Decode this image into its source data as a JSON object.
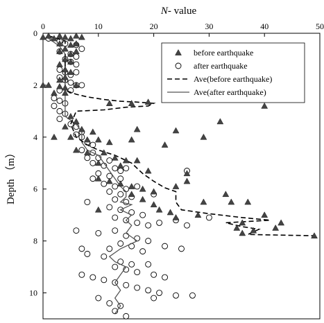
{
  "chart_data": {
    "type": "scatter",
    "title": "",
    "x_axis": {
      "label_italic": "N",
      "label_rest": "- value",
      "position": "top",
      "range": [
        0,
        50
      ],
      "ticks": [
        0,
        10,
        20,
        30,
        40,
        50
      ]
    },
    "y_axis": {
      "label": "Depth （m）",
      "inverted": true,
      "range": [
        0,
        11
      ],
      "ticks": [
        0,
        2,
        4,
        6,
        8,
        10
      ]
    },
    "grid": false,
    "legend": {
      "placement": "top-right",
      "entries": [
        {
          "key": "before_pts",
          "label": "before earthquake",
          "symbol": "triangle"
        },
        {
          "key": "after_pts",
          "label": "after earthquake",
          "symbol": "circle"
        },
        {
          "key": "before_ave",
          "label": "Ave(before earthquake)",
          "symbol": "dashed-line"
        },
        {
          "key": "after_ave",
          "label": "Ave(after earthquake)",
          "symbol": "solid-line"
        }
      ]
    },
    "series": {
      "before_pts": [
        [
          0,
          0.15
        ],
        [
          1,
          0.1
        ],
        [
          2,
          0.2
        ],
        [
          3,
          0.1
        ],
        [
          4,
          0.15
        ],
        [
          5,
          0.2
        ],
        [
          6,
          0.1
        ],
        [
          7,
          0.15
        ],
        [
          3,
          0.4
        ],
        [
          5,
          0.45
        ],
        [
          6,
          0.4
        ],
        [
          4,
          0.6
        ],
        [
          3,
          0.7
        ],
        [
          5,
          0.8
        ],
        [
          6,
          0.7
        ],
        [
          4,
          1.0
        ],
        [
          5,
          1.1
        ],
        [
          3,
          1.2
        ],
        [
          4,
          1.4
        ],
        [
          5,
          1.5
        ],
        [
          4,
          1.7
        ],
        [
          3,
          1.8
        ],
        [
          0,
          2.0
        ],
        [
          1,
          2.0
        ],
        [
          3,
          2.05
        ],
        [
          4,
          2.1
        ],
        [
          6,
          2.0
        ],
        [
          2,
          2.3
        ],
        [
          4,
          2.3
        ],
        [
          12,
          2.7
        ],
        [
          16,
          2.7
        ],
        [
          19,
          2.65
        ],
        [
          40,
          2.8
        ],
        [
          5,
          3.2
        ],
        [
          6,
          3.4
        ],
        [
          4,
          3.6
        ],
        [
          7,
          3.7
        ],
        [
          9,
          3.8
        ],
        [
          17,
          3.7
        ],
        [
          24,
          3.75
        ],
        [
          32,
          3.4
        ],
        [
          2,
          4.0
        ],
        [
          5,
          4.0
        ],
        [
          8,
          4.1
        ],
        [
          10,
          4.1
        ],
        [
          12,
          4.2
        ],
        [
          16,
          4.1
        ],
        [
          22,
          4.3
        ],
        [
          29,
          4.0
        ],
        [
          6,
          4.5
        ],
        [
          8,
          4.6
        ],
        [
          11,
          4.6
        ],
        [
          13,
          4.8
        ],
        [
          15,
          4.9
        ],
        [
          17,
          4.9
        ],
        [
          14,
          5.1
        ],
        [
          10,
          5.0
        ],
        [
          19,
          5.3
        ],
        [
          26,
          5.4
        ],
        [
          10,
          5.6
        ],
        [
          12,
          5.7
        ],
        [
          14,
          5.8
        ],
        [
          16,
          5.9
        ],
        [
          18,
          6.0
        ],
        [
          20,
          6.1
        ],
        [
          24,
          5.9
        ],
        [
          26,
          5.7
        ],
        [
          16,
          6.2
        ],
        [
          18,
          6.4
        ],
        [
          20,
          6.6
        ],
        [
          21,
          6.8
        ],
        [
          23,
          6.9
        ],
        [
          33,
          6.2
        ],
        [
          34,
          6.5
        ],
        [
          29,
          6.5
        ],
        [
          37,
          6.5
        ],
        [
          10,
          6.8
        ],
        [
          24,
          7.1
        ],
        [
          28,
          7.0
        ],
        [
          40,
          7.0
        ],
        [
          36,
          7.3
        ],
        [
          42,
          7.5
        ],
        [
          38,
          7.6
        ],
        [
          36,
          7.7
        ],
        [
          43,
          7.3
        ],
        [
          49,
          7.8
        ],
        [
          35,
          7.5
        ]
      ],
      "after_pts": [
        [
          1,
          0.2
        ],
        [
          3,
          0.3
        ],
        [
          4,
          0.4
        ],
        [
          6,
          0.45
        ],
        [
          7,
          0.6
        ],
        [
          3,
          0.7
        ],
        [
          5,
          0.8
        ],
        [
          6,
          0.9
        ],
        [
          4,
          1.0
        ],
        [
          5,
          1.1
        ],
        [
          6,
          1.2
        ],
        [
          3,
          1.4
        ],
        [
          4,
          1.5
        ],
        [
          5,
          1.6
        ],
        [
          6,
          1.5
        ],
        [
          3,
          1.7
        ],
        [
          4,
          1.8
        ],
        [
          5,
          1.9
        ],
        [
          6,
          2.0
        ],
        [
          7,
          2.0
        ],
        [
          3,
          2.2
        ],
        [
          5,
          2.2
        ],
        [
          2,
          2.5
        ],
        [
          3,
          2.6
        ],
        [
          4,
          2.7
        ],
        [
          2,
          2.8
        ],
        [
          3,
          3.0
        ],
        [
          4,
          3.1
        ],
        [
          3,
          3.3
        ],
        [
          5,
          3.5
        ],
        [
          6,
          3.6
        ],
        [
          7,
          3.8
        ],
        [
          6,
          3.9
        ],
        [
          7,
          4.0
        ],
        [
          8,
          4.2
        ],
        [
          9,
          4.3
        ],
        [
          7,
          4.5
        ],
        [
          9,
          4.6
        ],
        [
          8,
          4.8
        ],
        [
          10,
          4.8
        ],
        [
          12,
          4.9
        ],
        [
          9,
          5.0
        ],
        [
          11,
          5.1
        ],
        [
          13,
          5.2
        ],
        [
          14,
          5.3
        ],
        [
          10,
          5.4
        ],
        [
          12,
          5.5
        ],
        [
          15,
          5.2
        ],
        [
          9,
          5.6
        ],
        [
          14,
          5.6
        ],
        [
          11,
          5.8
        ],
        [
          13,
          5.9
        ],
        [
          15,
          6.0
        ],
        [
          17,
          5.9
        ],
        [
          12,
          6.1
        ],
        [
          14,
          6.2
        ],
        [
          16,
          6.3
        ],
        [
          13,
          6.4
        ],
        [
          15,
          6.5
        ],
        [
          8,
          6.5
        ],
        [
          20,
          6.2
        ],
        [
          26,
          5.3
        ],
        [
          12,
          6.7
        ],
        [
          14,
          6.8
        ],
        [
          16,
          6.9
        ],
        [
          18,
          7.0
        ],
        [
          13,
          7.1
        ],
        [
          15,
          7.2
        ],
        [
          17,
          7.3
        ],
        [
          19,
          7.4
        ],
        [
          21,
          7.3
        ],
        [
          24,
          7.2
        ],
        [
          26,
          7.4
        ],
        [
          30,
          7.1
        ],
        [
          6,
          7.6
        ],
        [
          10,
          7.7
        ],
        [
          13,
          7.6
        ],
        [
          15,
          7.8
        ],
        [
          17,
          7.9
        ],
        [
          19,
          8.0
        ],
        [
          14,
          8.1
        ],
        [
          16,
          8.2
        ],
        [
          12,
          8.3
        ],
        [
          18,
          8.4
        ],
        [
          22,
          8.2
        ],
        [
          25,
          8.3
        ],
        [
          7,
          8.3
        ],
        [
          8,
          8.5
        ],
        [
          11,
          8.6
        ],
        [
          14,
          8.8
        ],
        [
          16,
          8.9
        ],
        [
          19,
          8.9
        ],
        [
          13,
          9.0
        ],
        [
          15,
          9.1
        ],
        [
          17,
          9.2
        ],
        [
          20,
          9.3
        ],
        [
          22,
          9.4
        ],
        [
          7,
          9.3
        ],
        [
          9,
          9.4
        ],
        [
          11,
          9.5
        ],
        [
          13,
          9.6
        ],
        [
          15,
          9.7
        ],
        [
          17,
          9.8
        ],
        [
          19,
          9.9
        ],
        [
          21,
          10.0
        ],
        [
          24,
          10.1
        ],
        [
          27,
          10.1
        ],
        [
          10,
          10.2
        ],
        [
          12,
          10.4
        ],
        [
          14,
          10.5
        ],
        [
          13,
          10.7
        ],
        [
          15,
          10.9
        ],
        [
          20,
          10.2
        ]
      ],
      "before_ave": [
        [
          1,
          0.1
        ],
        [
          4,
          0.3
        ],
        [
          4,
          0.6
        ],
        [
          4,
          1.0
        ],
        [
          4,
          1.5
        ],
        [
          4,
          2.0
        ],
        [
          4,
          2.2
        ],
        [
          6,
          2.35
        ],
        [
          8,
          2.45
        ],
        [
          11,
          2.55
        ],
        [
          14,
          2.62
        ],
        [
          17,
          2.65
        ],
        [
          20,
          2.7
        ],
        [
          19,
          2.8
        ],
        [
          15,
          2.85
        ],
        [
          11,
          2.95
        ],
        [
          6,
          3.0
        ],
        [
          5,
          3.5
        ],
        [
          6,
          4.0
        ],
        [
          8,
          4.3
        ],
        [
          10,
          4.5
        ],
        [
          13,
          4.7
        ],
        [
          16,
          5.0
        ],
        [
          18,
          5.4
        ],
        [
          20,
          5.7
        ],
        [
          22,
          5.95
        ],
        [
          24,
          6.1
        ],
        [
          24,
          6.5
        ],
        [
          25,
          6.8
        ],
        [
          30,
          6.95
        ],
        [
          36,
          7.1
        ],
        [
          41,
          7.2
        ],
        [
          33,
          7.3
        ],
        [
          36,
          7.45
        ],
        [
          39,
          7.55
        ],
        [
          37,
          7.75
        ],
        [
          49,
          7.8
        ]
      ],
      "after_ave": [
        [
          1,
          0.2
        ],
        [
          3,
          0.5
        ],
        [
          4,
          0.8
        ],
        [
          4,
          1.2
        ],
        [
          4,
          1.6
        ],
        [
          4,
          2.0
        ],
        [
          4,
          2.4
        ],
        [
          4,
          2.8
        ],
        [
          4,
          3.2
        ],
        [
          6,
          3.5
        ],
        [
          7,
          3.8
        ],
        [
          7,
          4.2
        ],
        [
          8,
          4.5
        ],
        [
          10,
          4.7
        ],
        [
          11,
          5.0
        ],
        [
          12,
          5.3
        ],
        [
          13,
          5.6
        ],
        [
          14,
          5.9
        ],
        [
          15,
          6.1
        ],
        [
          15,
          6.3
        ],
        [
          14,
          6.5
        ],
        [
          16,
          6.6
        ],
        [
          14,
          6.8
        ],
        [
          16,
          7.0
        ],
        [
          15,
          7.2
        ],
        [
          16,
          7.4
        ],
        [
          15,
          7.7
        ],
        [
          17,
          8.0
        ],
        [
          14,
          8.3
        ],
        [
          12,
          8.6
        ],
        [
          13,
          8.8
        ],
        [
          15,
          9.0
        ],
        [
          14,
          9.3
        ],
        [
          13,
          9.6
        ],
        [
          14,
          9.9
        ],
        [
          13,
          10.2
        ],
        [
          14,
          10.5
        ],
        [
          13,
          10.8
        ]
      ]
    }
  }
}
